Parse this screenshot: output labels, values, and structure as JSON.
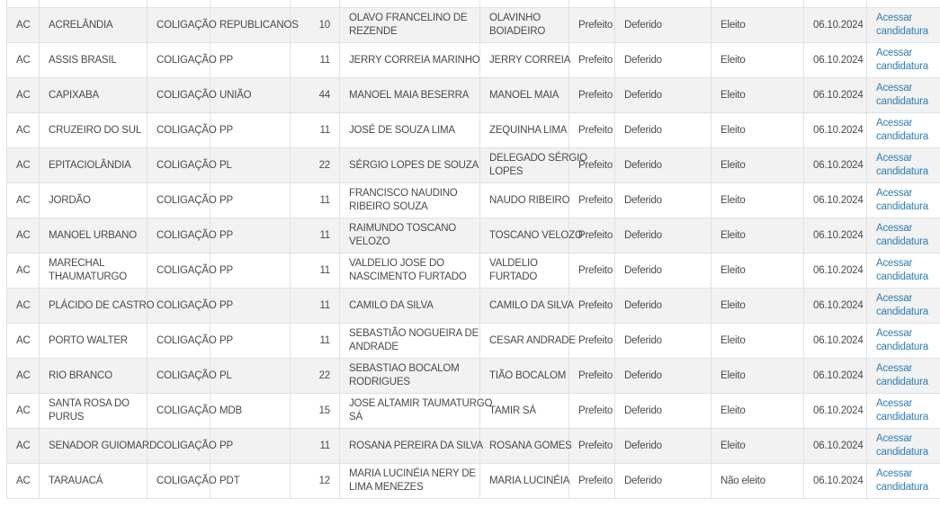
{
  "colors": {
    "link_blue": "#2e7cb8",
    "row_stripe": "#f2f2f2",
    "border": "#dee2e6",
    "text": "#4a4a4a"
  },
  "table": {
    "rows": [
      {
        "uf": "AC",
        "municipio": "ACRELÂNDIA",
        "tipo": "COLIGAÇÃO",
        "partido": "REPUBLICANOS",
        "numero": "10",
        "candidato": "OLAVO FRANCELINO DE\nREZENDE",
        "nome_urna": "OLAVINHO\nBOIADEIRO",
        "cargo": "Prefeito",
        "situacao": "Deferido",
        "resultado": "Eleito",
        "data": "06.10.2024",
        "link": "Acessar\ncandidatura"
      },
      {
        "uf": "AC",
        "municipio": "ASSIS BRASIL",
        "tipo": "COLIGAÇÃO",
        "partido": "PP",
        "numero": "11",
        "candidato": "JERRY CORREIA MARINHO",
        "nome_urna": "JERRY CORREIA",
        "cargo": "Prefeito",
        "situacao": "Deferido",
        "resultado": "Eleito",
        "data": "06.10.2024",
        "link": "Acessar\ncandidatura"
      },
      {
        "uf": "AC",
        "municipio": "CAPIXABA",
        "tipo": "COLIGAÇÃO",
        "partido": "UNIÃO",
        "numero": "44",
        "candidato": "MANOEL MAIA BESERRA",
        "nome_urna": "MANOEL MAIA",
        "cargo": "Prefeito",
        "situacao": "Deferido",
        "resultado": "Eleito",
        "data": "06.10.2024",
        "link": "Acessar\ncandidatura"
      },
      {
        "uf": "AC",
        "municipio": "CRUZEIRO DO SUL",
        "tipo": "COLIGAÇÃO",
        "partido": "PP",
        "numero": "11",
        "candidato": "JOSÉ DE SOUZA LIMA",
        "nome_urna": "ZEQUINHA LIMA",
        "cargo": "Prefeito",
        "situacao": "Deferido",
        "resultado": "Eleito",
        "data": "06.10.2024",
        "link": "Acessar\ncandidatura"
      },
      {
        "uf": "AC",
        "municipio": "EPITACIOLÂNDIA",
        "tipo": "COLIGAÇÃO",
        "partido": "PL",
        "numero": "22",
        "candidato": "SÉRGIO LOPES DE SOUZA",
        "nome_urna": "DELEGADO SÉRGIO\nLOPES",
        "cargo": "Prefeito",
        "situacao": "Deferido",
        "resultado": "Eleito",
        "data": "06.10.2024",
        "link": "Acessar\ncandidatura"
      },
      {
        "uf": "AC",
        "municipio": "JORDÃO",
        "tipo": "COLIGAÇÃO",
        "partido": "PP",
        "numero": "11",
        "candidato": "FRANCISCO NAUDINO\nRIBEIRO SOUZA",
        "nome_urna": "NAUDO RIBEIRO",
        "cargo": "Prefeito",
        "situacao": "Deferido",
        "resultado": "Eleito",
        "data": "06.10.2024",
        "link": "Acessar\ncandidatura"
      },
      {
        "uf": "AC",
        "municipio": "MANOEL URBANO",
        "tipo": "COLIGAÇÃO",
        "partido": "PP",
        "numero": "11",
        "candidato": "RAIMUNDO TOSCANO\nVELOZO",
        "nome_urna": "TOSCANO VELOZO",
        "cargo": "Prefeito",
        "situacao": "Deferido",
        "resultado": "Eleito",
        "data": "06.10.2024",
        "link": "Acessar\ncandidatura"
      },
      {
        "uf": "AC",
        "municipio": "MARECHAL\nTHAUMATURGO",
        "tipo": "COLIGAÇÃO",
        "partido": "PP",
        "numero": "11",
        "candidato": "VALDELIO JOSE DO\nNASCIMENTO FURTADO",
        "nome_urna": "VALDELIO\nFURTADO",
        "cargo": "Prefeito",
        "situacao": "Deferido",
        "resultado": "Eleito",
        "data": "06.10.2024",
        "link": "Acessar\ncandidatura"
      },
      {
        "uf": "AC",
        "municipio": "PLÁCIDO DE CASTRO",
        "tipo": "COLIGAÇÃO",
        "partido": "PP",
        "numero": "11",
        "candidato": "CAMILO DA SILVA",
        "nome_urna": "CAMILO DA SILVA",
        "cargo": "Prefeito",
        "situacao": "Deferido",
        "resultado": "Eleito",
        "data": "06.10.2024",
        "link": "Acessar\ncandidatura"
      },
      {
        "uf": "AC",
        "municipio": "PORTO WALTER",
        "tipo": "COLIGAÇÃO",
        "partido": "PP",
        "numero": "11",
        "candidato": "SEBASTIÃO NOGUEIRA DE\nANDRADE",
        "nome_urna": "CESAR ANDRADE",
        "cargo": "Prefeito",
        "situacao": "Deferido",
        "resultado": "Eleito",
        "data": "06.10.2024",
        "link": "Acessar\ncandidatura"
      },
      {
        "uf": "AC",
        "municipio": "RIO BRANCO",
        "tipo": "COLIGAÇÃO",
        "partido": "PL",
        "numero": "22",
        "candidato": "SEBASTIAO BOCALOM\nRODRIGUES",
        "nome_urna": "TIÃO BOCALOM",
        "cargo": "Prefeito",
        "situacao": "Deferido",
        "resultado": "Eleito",
        "data": "06.10.2024",
        "link": "Acessar\ncandidatura"
      },
      {
        "uf": "AC",
        "municipio": "SANTA ROSA DO\nPURUS",
        "tipo": "COLIGAÇÃO",
        "partido": "MDB",
        "numero": "15",
        "candidato": "JOSE ALTAMIR TAUMATURGO\nSÁ",
        "nome_urna": "TAMIR SÁ",
        "cargo": "Prefeito",
        "situacao": "Deferido",
        "resultado": "Eleito",
        "data": "06.10.2024",
        "link": "Acessar\ncandidatura"
      },
      {
        "uf": "AC",
        "municipio": "SENADOR GUIOMARD",
        "tipo": "COLIGAÇÃO",
        "partido": "PP",
        "numero": "11",
        "candidato": "ROSANA PEREIRA DA SILVA",
        "nome_urna": "ROSANA GOMES",
        "cargo": "Prefeito",
        "situacao": "Deferido",
        "resultado": "Eleito",
        "data": "06.10.2024",
        "link": "Acessar\ncandidatura"
      },
      {
        "uf": "AC",
        "municipio": "TARAUACÁ",
        "tipo": "COLIGAÇÃO",
        "partido": "PDT",
        "numero": "12",
        "candidato": "MARIA LUCINÉIA NERY DE\nLIMA MENEZES",
        "nome_urna": "MARIA LUCINÉIA",
        "cargo": "Prefeito",
        "situacao": "Deferido",
        "resultado": "Não eleito",
        "data": "06.10.2024",
        "link": "Acessar\ncandidatura"
      }
    ]
  }
}
